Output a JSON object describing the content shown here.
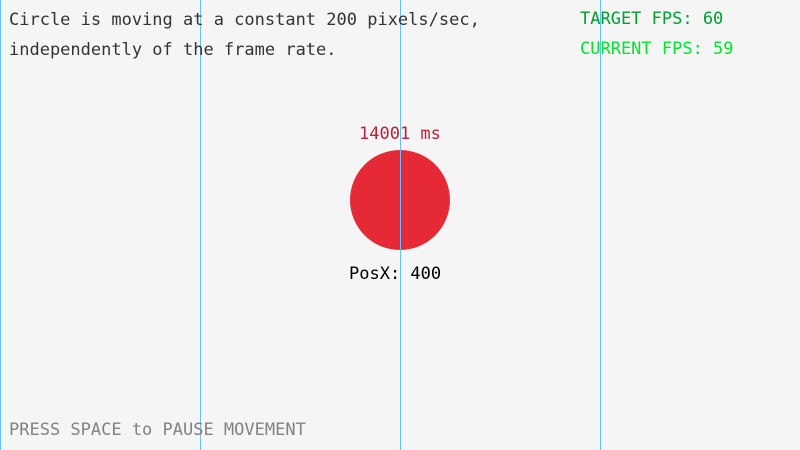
{
  "info": {
    "line1": "Circle is moving at a constant 200 pixels/sec,",
    "line2": "independently of the frame rate."
  },
  "fps": {
    "target": "TARGET FPS: 60",
    "current": "CURRENT FPS: 59"
  },
  "timer": "14001 ms",
  "position": "PosX: 400",
  "hint": "PRESS SPACE to PAUSE MOVEMENT",
  "colors": {
    "background": "#f5f5f5",
    "circle": "#e62937",
    "timer": "#be2137",
    "target_fps": "#00a02f",
    "current_fps": "#00e430",
    "hint": "#828282",
    "grid": "#66bfff"
  }
}
